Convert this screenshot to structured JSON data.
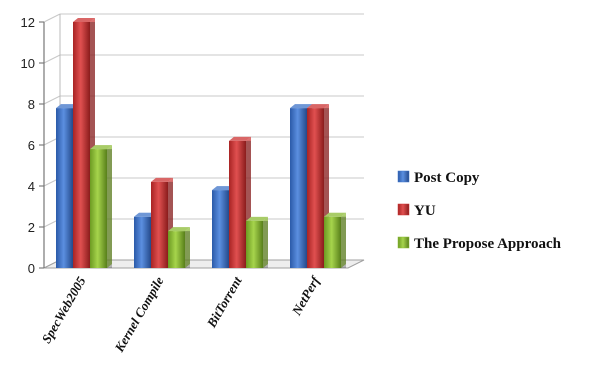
{
  "chart_data": {
    "type": "bar",
    "categories": [
      "SpecWeb2005",
      "Kernel Compile",
      "BitTorrent",
      "NetPerf"
    ],
    "series": [
      {
        "name": "Post Copy",
        "values": [
          7.8,
          2.5,
          3.8,
          7.8
        ],
        "color": "#3f74c9"
      },
      {
        "name": "YU",
        "values": [
          12,
          4.2,
          6.2,
          7.8
        ],
        "color": "#cc3333"
      },
      {
        "name": "The Propose Approach",
        "values": [
          5.8,
          1.8,
          2.3,
          2.5
        ],
        "color": "#8bbb35"
      }
    ],
    "yticks": [
      0,
      2,
      4,
      6,
      8,
      10,
      12
    ],
    "ylim": [
      0,
      12
    ],
    "grid": true,
    "legend": "right",
    "style": "3d-bars"
  }
}
